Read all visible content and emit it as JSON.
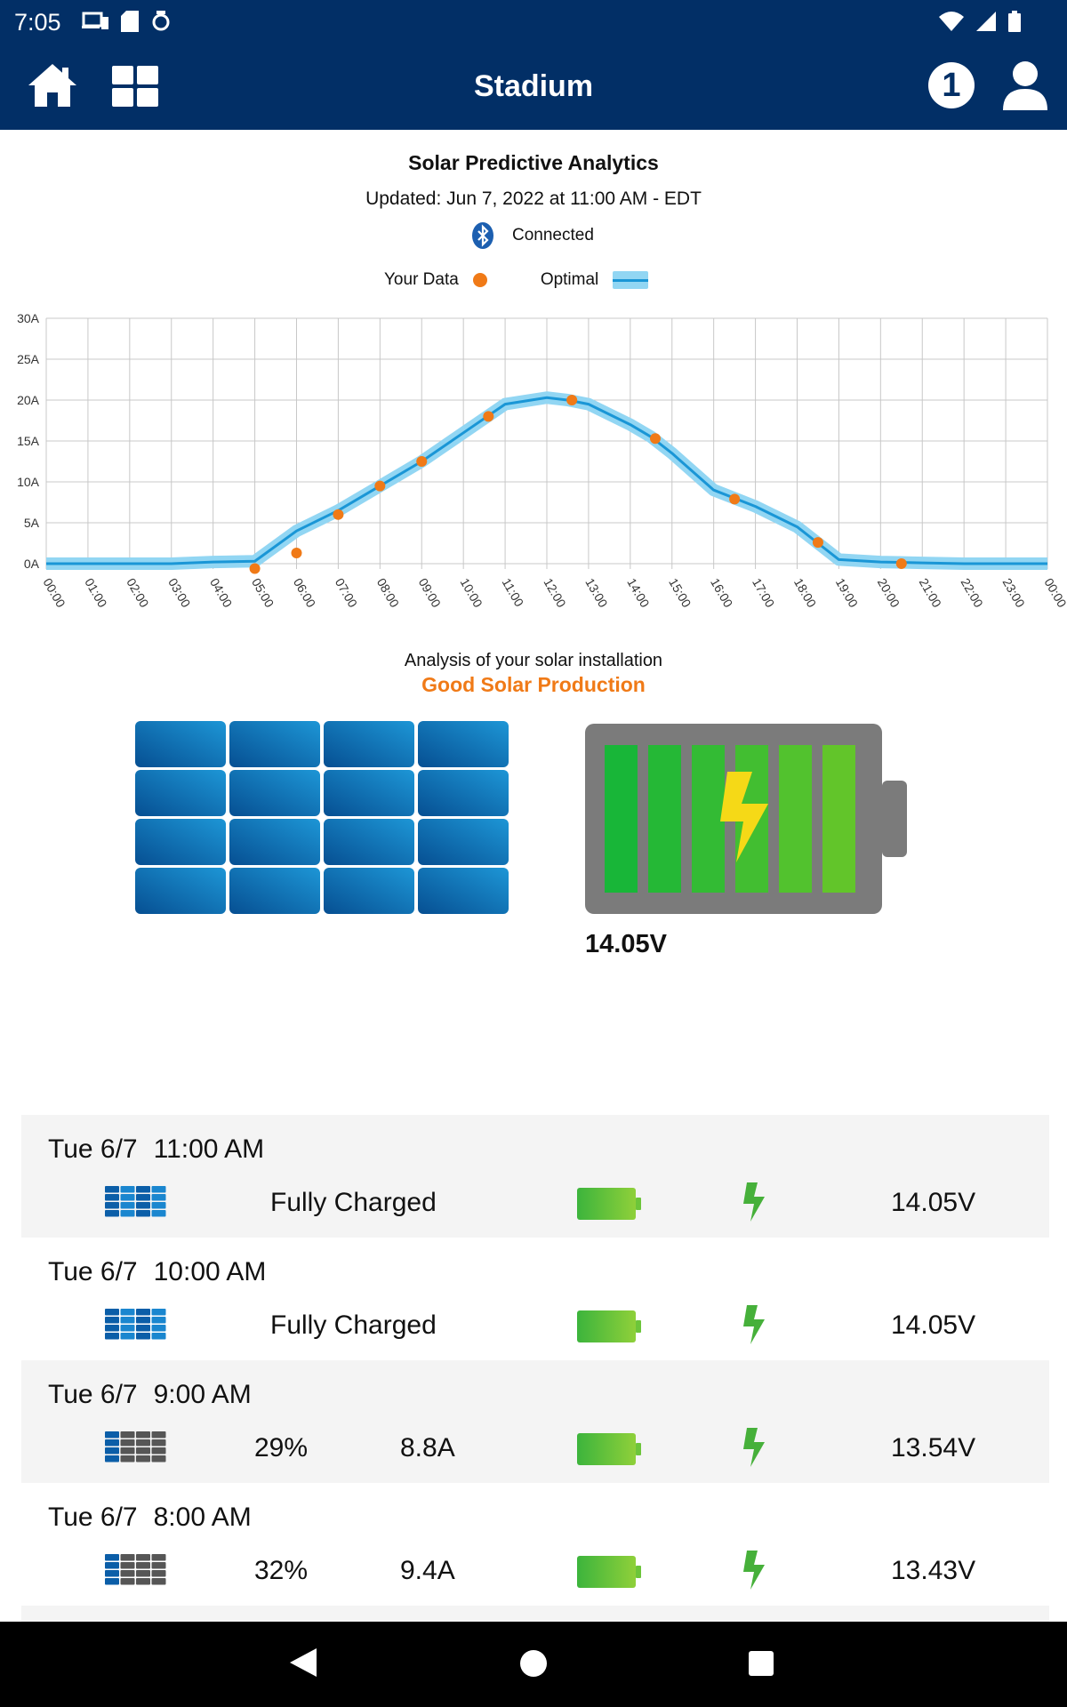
{
  "status_bar": {
    "time": "7:05"
  },
  "app_bar": {
    "title": "Stadium",
    "notification_count": "1"
  },
  "header": {
    "title": "Solar Predictive Analytics",
    "updated": "Updated: Jun 7, 2022 at 11:00 AM - EDT",
    "connection": "Connected",
    "legend_your_data": "Your Data",
    "legend_optimal": "Optimal"
  },
  "colors": {
    "brand": "#022f66",
    "accent": "#f07a17",
    "optimal_band": "#92d6f3",
    "optimal_line": "#1a96d6",
    "battery_green": "#3cba3a"
  },
  "chart_data": {
    "type": "line",
    "x_tick_labels": [
      "00:00",
      "01:00",
      "02:00",
      "03:00",
      "04:00",
      "05:00",
      "06:00",
      "07:00",
      "08:00",
      "09:00",
      "10:00",
      "11:00",
      "12:00",
      "13:00",
      "14:00",
      "15:00",
      "16:00",
      "17:00",
      "18:00",
      "19:00",
      "20:00",
      "21:00",
      "22:00",
      "23:00",
      "00:00"
    ],
    "y_tick_labels": [
      "30A",
      "25A",
      "20A",
      "15A",
      "10A",
      "5A",
      "0A"
    ],
    "ylim": [
      0,
      30
    ],
    "xlim": [
      0,
      24
    ],
    "grid": true,
    "legend_position": "top-center",
    "series": [
      {
        "name": "Optimal",
        "x": [
          0,
          1,
          2,
          3,
          4,
          5,
          6,
          7,
          8,
          9,
          10,
          11,
          12,
          12.5,
          13,
          14,
          14.5,
          15,
          16,
          17,
          18,
          18.5,
          19,
          20,
          21,
          22,
          23,
          24
        ],
        "y": [
          0,
          0,
          0,
          0,
          0.2,
          0.3,
          4,
          6.5,
          9.5,
          12.5,
          16,
          19.5,
          20.3,
          20,
          19.5,
          17,
          15.5,
          13.5,
          9,
          7,
          4.5,
          2.5,
          0.5,
          0.2,
          0.1,
          0,
          0,
          0
        ]
      },
      {
        "name": "Your Data",
        "x": [
          5,
          6,
          7,
          8,
          9,
          10.6,
          12.6,
          14.6,
          16.5,
          18.5,
          20.5
        ],
        "y": [
          -0.6,
          1.3,
          6,
          9.5,
          12.5,
          18,
          20,
          15.3,
          7.9,
          2.6,
          0
        ]
      }
    ]
  },
  "analysis": {
    "label": "Analysis of your solar installation",
    "status": "Good Solar Production"
  },
  "battery": {
    "voltage": "14.05V"
  },
  "log": [
    {
      "day": "Tue 6/7",
      "time": "11:00 AM",
      "status": "Fully Charged",
      "voltage": "14.05V",
      "panel_level": 1.0
    },
    {
      "day": "Tue 6/7",
      "time": "10:00 AM",
      "status": "Fully Charged",
      "voltage": "14.05V",
      "panel_level": 1.0
    },
    {
      "day": "Tue 6/7",
      "time": "9:00 AM",
      "percent": "29%",
      "amps": "8.8A",
      "voltage": "13.54V",
      "panel_level": 0.29
    },
    {
      "day": "Tue 6/7",
      "time": "8:00 AM",
      "percent": "32%",
      "amps": "9.4A",
      "voltage": "13.43V",
      "panel_level": 0.32
    }
  ]
}
